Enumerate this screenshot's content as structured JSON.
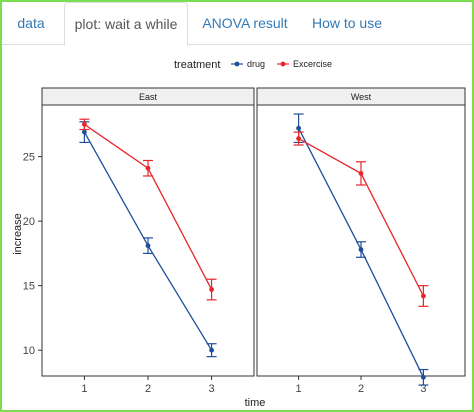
{
  "tabs": [
    {
      "label": "data",
      "active": false
    },
    {
      "label": "plot: wait a while",
      "active": true
    },
    {
      "label": "ANOVA result",
      "active": false
    },
    {
      "label": "How to use",
      "active": false
    }
  ],
  "colors": {
    "frame": "#7ddc4f",
    "tab_link": "#337ab7",
    "drug": "#1f4e9a",
    "exercise": "#e8262a",
    "strip_fill": "#f0f0f0"
  },
  "chart_data": {
    "type": "line",
    "xlabel": "time",
    "ylabel": "increase",
    "legend_title": "treatment",
    "legend_position": "top",
    "x_ticks": [
      "1",
      "2",
      "3"
    ],
    "y_ticks": [
      "10",
      "15",
      "20",
      "25"
    ],
    "ylim": [
      8,
      29
    ],
    "grid": false,
    "error_bars": true,
    "panels": [
      {
        "strip": "East",
        "series": [
          {
            "name": "drug",
            "x": [
              1,
              2,
              3
            ],
            "y": [
              26.9,
              18.1,
              10.0
            ],
            "err": [
              0.8,
              0.6,
              0.5
            ]
          },
          {
            "name": "Excercise",
            "x": [
              1,
              2,
              3
            ],
            "y": [
              27.5,
              24.1,
              14.7
            ],
            "err": [
              0.4,
              0.6,
              0.8
            ]
          }
        ]
      },
      {
        "strip": "West",
        "series": [
          {
            "name": "drug",
            "x": [
              1,
              2,
              3
            ],
            "y": [
              27.2,
              17.8,
              7.9
            ],
            "err": [
              1.1,
              0.6,
              0.6
            ]
          },
          {
            "name": "Excercise",
            "x": [
              1,
              2,
              3
            ],
            "y": [
              26.4,
              23.7,
              14.2
            ],
            "err": [
              0.5,
              0.9,
              0.8
            ]
          }
        ]
      }
    ]
  }
}
